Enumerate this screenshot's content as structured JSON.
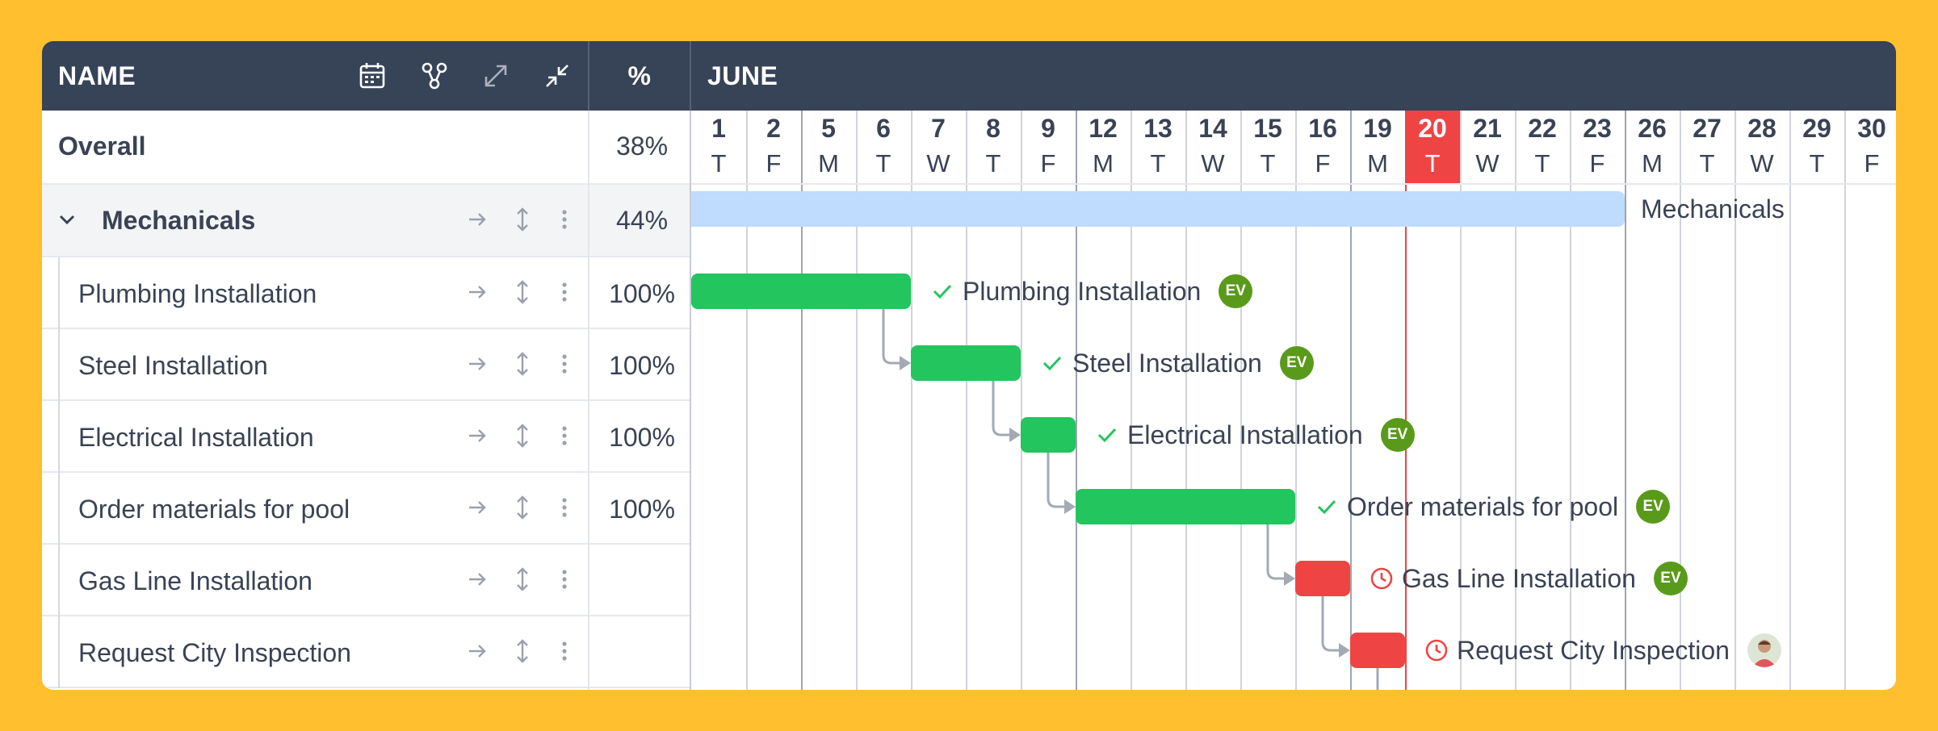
{
  "header": {
    "name_label": "NAME",
    "percent_label": "%",
    "month_label": "JUNE",
    "icons": [
      "calendar-icon",
      "dependency-icon",
      "expand-icon",
      "collapse-icon"
    ]
  },
  "overall": {
    "label": "Overall",
    "percent": "38%"
  },
  "group": {
    "label": "Mechanicals",
    "percent": "44%",
    "bar_label": "Mechanicals"
  },
  "tasks": [
    {
      "name": "Plumbing Installation",
      "percent": "100%",
      "status": "done",
      "assignee": "EV"
    },
    {
      "name": "Steel Installation",
      "percent": "100%",
      "status": "done",
      "assignee": "EV"
    },
    {
      "name": "Electrical Installation",
      "percent": "100%",
      "status": "done",
      "assignee": "EV"
    },
    {
      "name": "Order materials for pool",
      "percent": "100%",
      "status": "done",
      "assignee": "EV"
    },
    {
      "name": "Gas Line Installation",
      "percent": "",
      "status": "late",
      "assignee": "EV"
    },
    {
      "name": "Request City Inspection",
      "percent": "",
      "status": "late",
      "assignee": "avatar"
    }
  ],
  "days": [
    {
      "num": "1",
      "wd": "T"
    },
    {
      "num": "2",
      "wd": "F"
    },
    {
      "num": "5",
      "wd": "M"
    },
    {
      "num": "6",
      "wd": "T"
    },
    {
      "num": "7",
      "wd": "W"
    },
    {
      "num": "8",
      "wd": "T"
    },
    {
      "num": "9",
      "wd": "F"
    },
    {
      "num": "12",
      "wd": "M"
    },
    {
      "num": "13",
      "wd": "T"
    },
    {
      "num": "14",
      "wd": "W"
    },
    {
      "num": "15",
      "wd": "T"
    },
    {
      "num": "16",
      "wd": "F"
    },
    {
      "num": "19",
      "wd": "M"
    },
    {
      "num": "20",
      "wd": "T"
    },
    {
      "num": "21",
      "wd": "W"
    },
    {
      "num": "22",
      "wd": "T"
    },
    {
      "num": "23",
      "wd": "F"
    },
    {
      "num": "26",
      "wd": "M"
    },
    {
      "num": "27",
      "wd": "T"
    },
    {
      "num": "28",
      "wd": "W"
    },
    {
      "num": "29",
      "wd": "T"
    },
    {
      "num": "30",
      "wd": "F"
    }
  ],
  "today": "20",
  "colors": {
    "header_bg": "#374357",
    "done_bar": "#22C55E",
    "late_bar": "#EF4444",
    "summary_bar": "#BFDBFE",
    "today": "#EF4444",
    "assignee_badge": "#5A9A1A",
    "background": "#FFBF2E"
  }
}
